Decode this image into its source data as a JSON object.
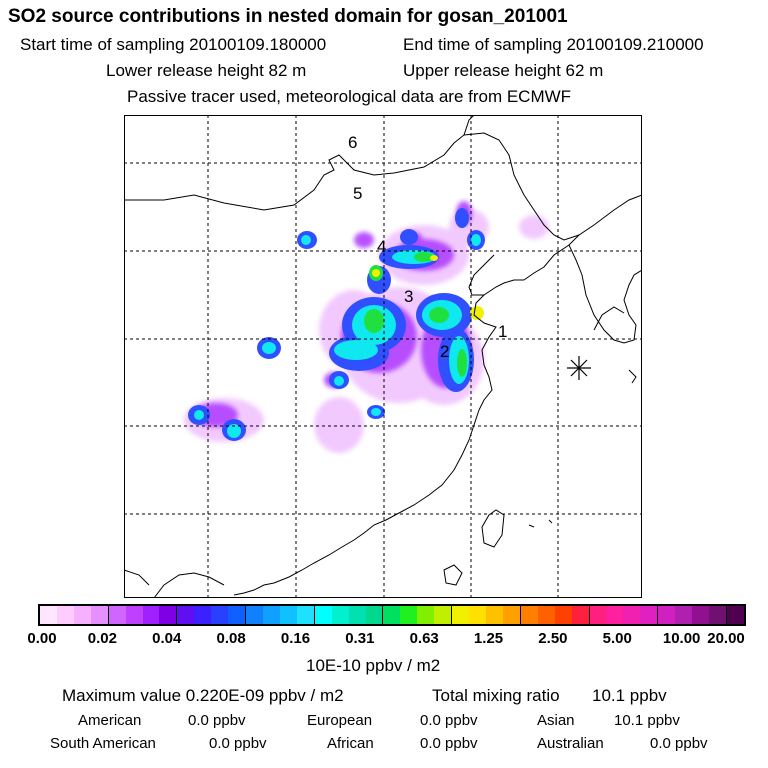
{
  "header": {
    "title": "SO2 source contributions in nested domain for gosan_201001",
    "start": "Start time of sampling 20100109.180000",
    "end": "End time of sampling 20100109.210000",
    "lower": "Lower release height   82 m",
    "upper": "Upper release height   62 m",
    "note": "Passive tracer used, meteorological data are from ECMWF"
  },
  "map": {
    "labels": [
      "1",
      "2",
      "3",
      "4",
      "5",
      "6"
    ],
    "marker": "receptor-star"
  },
  "colorbar": {
    "ticks": [
      "0.00",
      "0.02",
      "0.04",
      "0.08",
      "0.16",
      "0.31",
      "0.63",
      "1.25",
      "2.50",
      "5.00",
      "10.00",
      "20.00"
    ],
    "unit": "10E-10 ppbv / m2",
    "colors": [
      "#ffe6ff",
      "#ffccff",
      "#f5b0ff",
      "#e690ff",
      "#d066ff",
      "#c040ff",
      "#a020ff",
      "#8000e6",
      "#6010f0",
      "#3c20ff",
      "#2a40ff",
      "#1060ff",
      "#1080ff",
      "#10a0ff",
      "#10c0ff",
      "#20e0ff",
      "#00ffff",
      "#00f0d0",
      "#00e0b0",
      "#00d890",
      "#00e060",
      "#20f020",
      "#80f000",
      "#c0f000",
      "#f0f000",
      "#ffe000",
      "#ffc000",
      "#ffa000",
      "#ff8000",
      "#ff6000",
      "#ff4000",
      "#ff2040",
      "#ff2080",
      "#ff20a0",
      "#f020b0",
      "#e020c0",
      "#d020c0",
      "#b020b0",
      "#901090",
      "#701070",
      "#500050"
    ]
  },
  "summary": {
    "max_label": "Maximum value  0.220E-09 ppbv / m2",
    "total_label": "Total mixing ratio",
    "total_value": "10.1 ppbv",
    "regions": [
      {
        "name": "American",
        "value": "0.0 ppbv"
      },
      {
        "name": "European",
        "value": "0.0 ppbv"
      },
      {
        "name": "Asian",
        "value": "10.1 ppbv"
      },
      {
        "name": "South American",
        "value": "0.0 ppbv"
      },
      {
        "name": "African",
        "value": "0.0 ppbv"
      },
      {
        "name": "Australian",
        "value": "0.0 ppbv"
      }
    ]
  }
}
